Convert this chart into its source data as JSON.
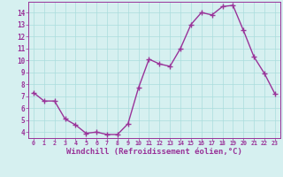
{
  "x": [
    0,
    1,
    2,
    3,
    4,
    5,
    6,
    7,
    8,
    9,
    10,
    11,
    12,
    13,
    14,
    15,
    16,
    17,
    18,
    19,
    20,
    21,
    22,
    23
  ],
  "y": [
    7.3,
    6.6,
    6.6,
    5.1,
    4.6,
    3.9,
    4.0,
    3.8,
    3.8,
    4.7,
    7.7,
    10.1,
    9.7,
    9.5,
    11.0,
    13.0,
    14.0,
    13.8,
    14.5,
    14.6,
    12.5,
    10.3,
    8.9,
    7.2
  ],
  "line_color": "#993399",
  "marker": "+",
  "marker_size": 4,
  "linewidth": 1.0,
  "xlabel": "Windchill (Refroidissement éolien,°C)",
  "xlabel_fontsize": 6.5,
  "ylabel_ticks": [
    4,
    5,
    6,
    7,
    8,
    9,
    10,
    11,
    12,
    13,
    14
  ],
  "xtick_labels": [
    "0",
    "1",
    "2",
    "3",
    "4",
    "5",
    "6",
    "7",
    "8",
    "9",
    "10",
    "11",
    "12",
    "13",
    "14",
    "15",
    "16",
    "17",
    "18",
    "19",
    "20",
    "21",
    "22",
    "23"
  ],
  "ylim": [
    3.5,
    14.9
  ],
  "xlim": [
    -0.5,
    23.5
  ],
  "bg_color": "#d6f0f0",
  "grid_color": "#aadddd",
  "tick_color": "#993399",
  "label_color": "#993399"
}
